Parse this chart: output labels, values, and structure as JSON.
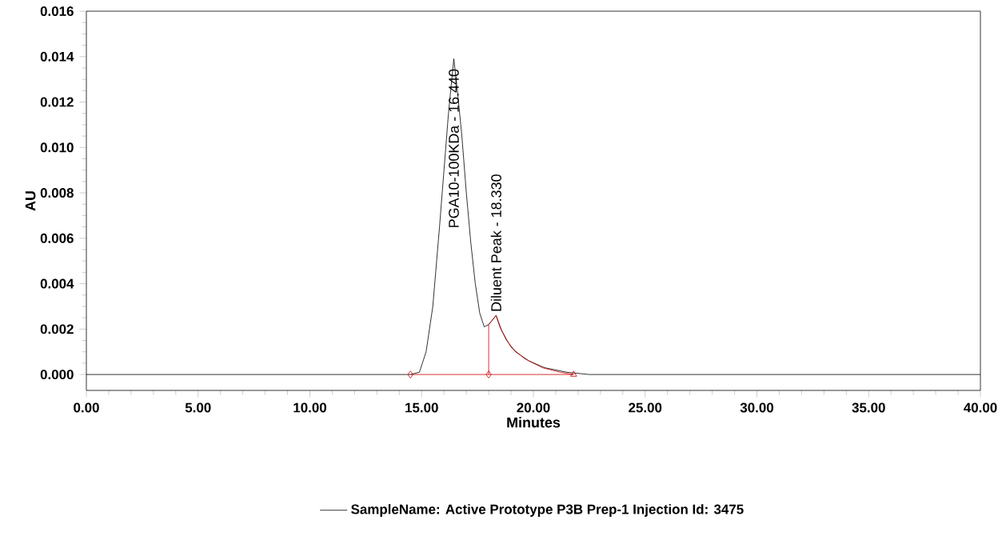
{
  "chart_data": {
    "type": "line",
    "xlabel": "Minutes",
    "ylabel": "AU",
    "xlim": [
      0,
      40
    ],
    "ylim": [
      -0.0007,
      0.016
    ],
    "xticks": [
      {
        "value": 0,
        "label": "0.00"
      },
      {
        "value": 5,
        "label": "5.00"
      },
      {
        "value": 10,
        "label": "10.00"
      },
      {
        "value": 15,
        "label": "15.00"
      },
      {
        "value": 20,
        "label": "20.00"
      },
      {
        "value": 25,
        "label": "25.00"
      },
      {
        "value": 30,
        "label": "30.00"
      },
      {
        "value": 35,
        "label": "35.00"
      },
      {
        "value": 40,
        "label": "40.00"
      }
    ],
    "yticks": [
      {
        "value": 0,
        "label": "0.000"
      },
      {
        "value": 0.002,
        "label": "0.002"
      },
      {
        "value": 0.004,
        "label": "0.004"
      },
      {
        "value": 0.006,
        "label": "0.006"
      },
      {
        "value": 0.008,
        "label": "0.008"
      },
      {
        "value": 0.01,
        "label": "0.010"
      },
      {
        "value": 0.012,
        "label": "0.012"
      },
      {
        "value": 0.014,
        "label": "0.014"
      },
      {
        "value": 0.016,
        "label": "0.016"
      }
    ],
    "legend": "bottom",
    "series": [
      {
        "name": "SampleName: Active Prototype P3B Prep-1  Injection Id: 3475",
        "color": "#000000",
        "x": [
          0,
          5,
          10,
          14.5,
          14.9,
          15.2,
          15.5,
          15.8,
          16.0,
          16.2,
          16.44,
          16.6,
          16.8,
          17.0,
          17.2,
          17.4,
          17.6,
          17.8,
          18.0,
          18.33,
          18.5,
          18.8,
          19.2,
          19.8,
          20.5,
          21.5,
          22.5,
          30,
          40
        ],
        "values": [
          0,
          0,
          0,
          0,
          0.0001,
          0.001,
          0.003,
          0.0065,
          0.009,
          0.0115,
          0.0139,
          0.0125,
          0.0105,
          0.008,
          0.0058,
          0.004,
          0.0027,
          0.0021,
          0.0022,
          0.0026,
          0.0021,
          0.0015,
          0.001,
          0.0006,
          0.0003,
          0.0001,
          0,
          0,
          0
        ]
      },
      {
        "color": "#cc0000",
        "x": [
          14.5,
          21.8
        ],
        "values": [
          0,
          0
        ]
      },
      {
        "color": "#cc0000",
        "x": [
          18.0,
          18.0,
          18.33,
          18.6,
          19.0,
          19.6,
          20.4,
          21.2,
          21.8
        ],
        "values": [
          0,
          0.0022,
          0.0026,
          0.0019,
          0.0012,
          0.0007,
          0.0003,
          0.0001,
          0
        ]
      },
      {
        "type": "scatter",
        "marker": "diamond",
        "color": "#cc0000",
        "x": [
          14.5,
          18.0
        ],
        "values": [
          0,
          0
        ]
      },
      {
        "type": "scatter",
        "marker": "triangle",
        "color": "#cc0000",
        "x": [
          21.8
        ],
        "values": [
          0
        ]
      }
    ],
    "annotations": [
      {
        "text": "PGA10-100KDa - 16.440",
        "x": 16.44,
        "y": 0.0139
      },
      {
        "text": "Diluent Peak - 18.330",
        "x": 18.33,
        "y": 0.0026
      }
    ]
  }
}
